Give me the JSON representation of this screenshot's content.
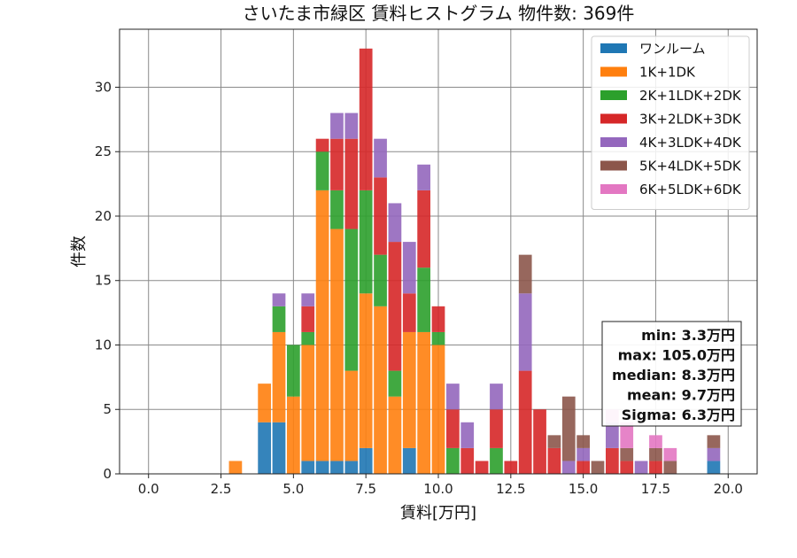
{
  "chart_data": {
    "type": "bar",
    "stacked": true,
    "title": "さいたま市緑区 賃料ヒストグラム 物件数: 369件",
    "xlabel": "賃料[万円]",
    "ylabel": "件数",
    "xlim": [
      -1.0,
      21.0
    ],
    "ylim": [
      0,
      34.5
    ],
    "xticks": [
      0.0,
      2.5,
      5.0,
      7.5,
      10.0,
      12.5,
      15.0,
      17.5,
      20.0
    ],
    "xtick_labels": [
      "0.0",
      "2.5",
      "5.0",
      "7.5",
      "10.0",
      "12.5",
      "15.0",
      "17.5",
      "20.0"
    ],
    "yticks": [
      0,
      5,
      10,
      15,
      20,
      25,
      30
    ],
    "ytick_labels": [
      "0",
      "5",
      "10",
      "15",
      "20",
      "25",
      "30"
    ],
    "grid": true,
    "legend_position": "top-right",
    "bin_width": 0.5,
    "categories": [
      3.0,
      4.0,
      4.5,
      5.0,
      5.5,
      6.0,
      6.5,
      7.0,
      7.5,
      8.0,
      8.5,
      9.0,
      9.5,
      10.0,
      10.5,
      11.0,
      11.5,
      12.0,
      12.5,
      13.0,
      13.5,
      14.0,
      14.5,
      15.0,
      15.5,
      16.0,
      16.5,
      17.0,
      17.5,
      18.0,
      19.5
    ],
    "series": [
      {
        "name": "ワンルーム",
        "color": "#1f77b4",
        "values": [
          0,
          4,
          4,
          0,
          1,
          1,
          1,
          1,
          2,
          0,
          0,
          2,
          0,
          0,
          0,
          0,
          0,
          0,
          0,
          0,
          0,
          0,
          0,
          0,
          0,
          0,
          0,
          0,
          0,
          0,
          1
        ]
      },
      {
        "name": "1K+1DK",
        "color": "#ff7f0e",
        "values": [
          1,
          3,
          7,
          6,
          9,
          21,
          18,
          7,
          12,
          13,
          6,
          9,
          11,
          10,
          0,
          0,
          0,
          0,
          0,
          0,
          0,
          0,
          0,
          0,
          0,
          0,
          0,
          0,
          0,
          0,
          0
        ]
      },
      {
        "name": "2K+1LDK+2DK",
        "color": "#2ca02c",
        "values": [
          0,
          0,
          2,
          4,
          1,
          3,
          3,
          11,
          8,
          4,
          2,
          0,
          5,
          1,
          2,
          0,
          0,
          2,
          0,
          0,
          0,
          0,
          0,
          0,
          0,
          0,
          0,
          0,
          0,
          0,
          0
        ]
      },
      {
        "name": "3K+2LDK+3DK",
        "color": "#d62728",
        "values": [
          0,
          0,
          0,
          0,
          2,
          1,
          4,
          7,
          11,
          6,
          10,
          3,
          6,
          2,
          3,
          2,
          1,
          3,
          1,
          8,
          5,
          2,
          0,
          1,
          0,
          2,
          1,
          0,
          1,
          0,
          0
        ]
      },
      {
        "name": "4K+3LDK+4DK",
        "color": "#9467bd",
        "values": [
          0,
          0,
          1,
          0,
          1,
          0,
          2,
          2,
          0,
          3,
          3,
          4,
          2,
          0,
          2,
          2,
          0,
          2,
          0,
          6,
          0,
          0,
          1,
          1,
          0,
          2,
          0,
          1,
          0,
          0,
          1
        ]
      },
      {
        "name": "5K+4LDK+5DK",
        "color": "#8c564b",
        "values": [
          0,
          0,
          0,
          0,
          0,
          0,
          0,
          0,
          0,
          0,
          0,
          0,
          0,
          0,
          0,
          0,
          0,
          0,
          0,
          3,
          0,
          1,
          5,
          1,
          1,
          0,
          1,
          0,
          1,
          1,
          1
        ]
      },
      {
        "name": "6K+5LDK+6DK",
        "color": "#e377c2",
        "values": [
          0,
          0,
          0,
          0,
          0,
          0,
          0,
          0,
          0,
          0,
          0,
          0,
          0,
          0,
          0,
          0,
          0,
          0,
          0,
          0,
          0,
          0,
          0,
          0,
          0,
          1,
          2,
          0,
          1,
          1,
          0
        ]
      }
    ],
    "annotation_lines": [
      "min: 3.3万円",
      "max: 105.0万円",
      "median: 8.3万円",
      "mean: 9.7万円",
      "Sigma: 6.3万円"
    ]
  }
}
